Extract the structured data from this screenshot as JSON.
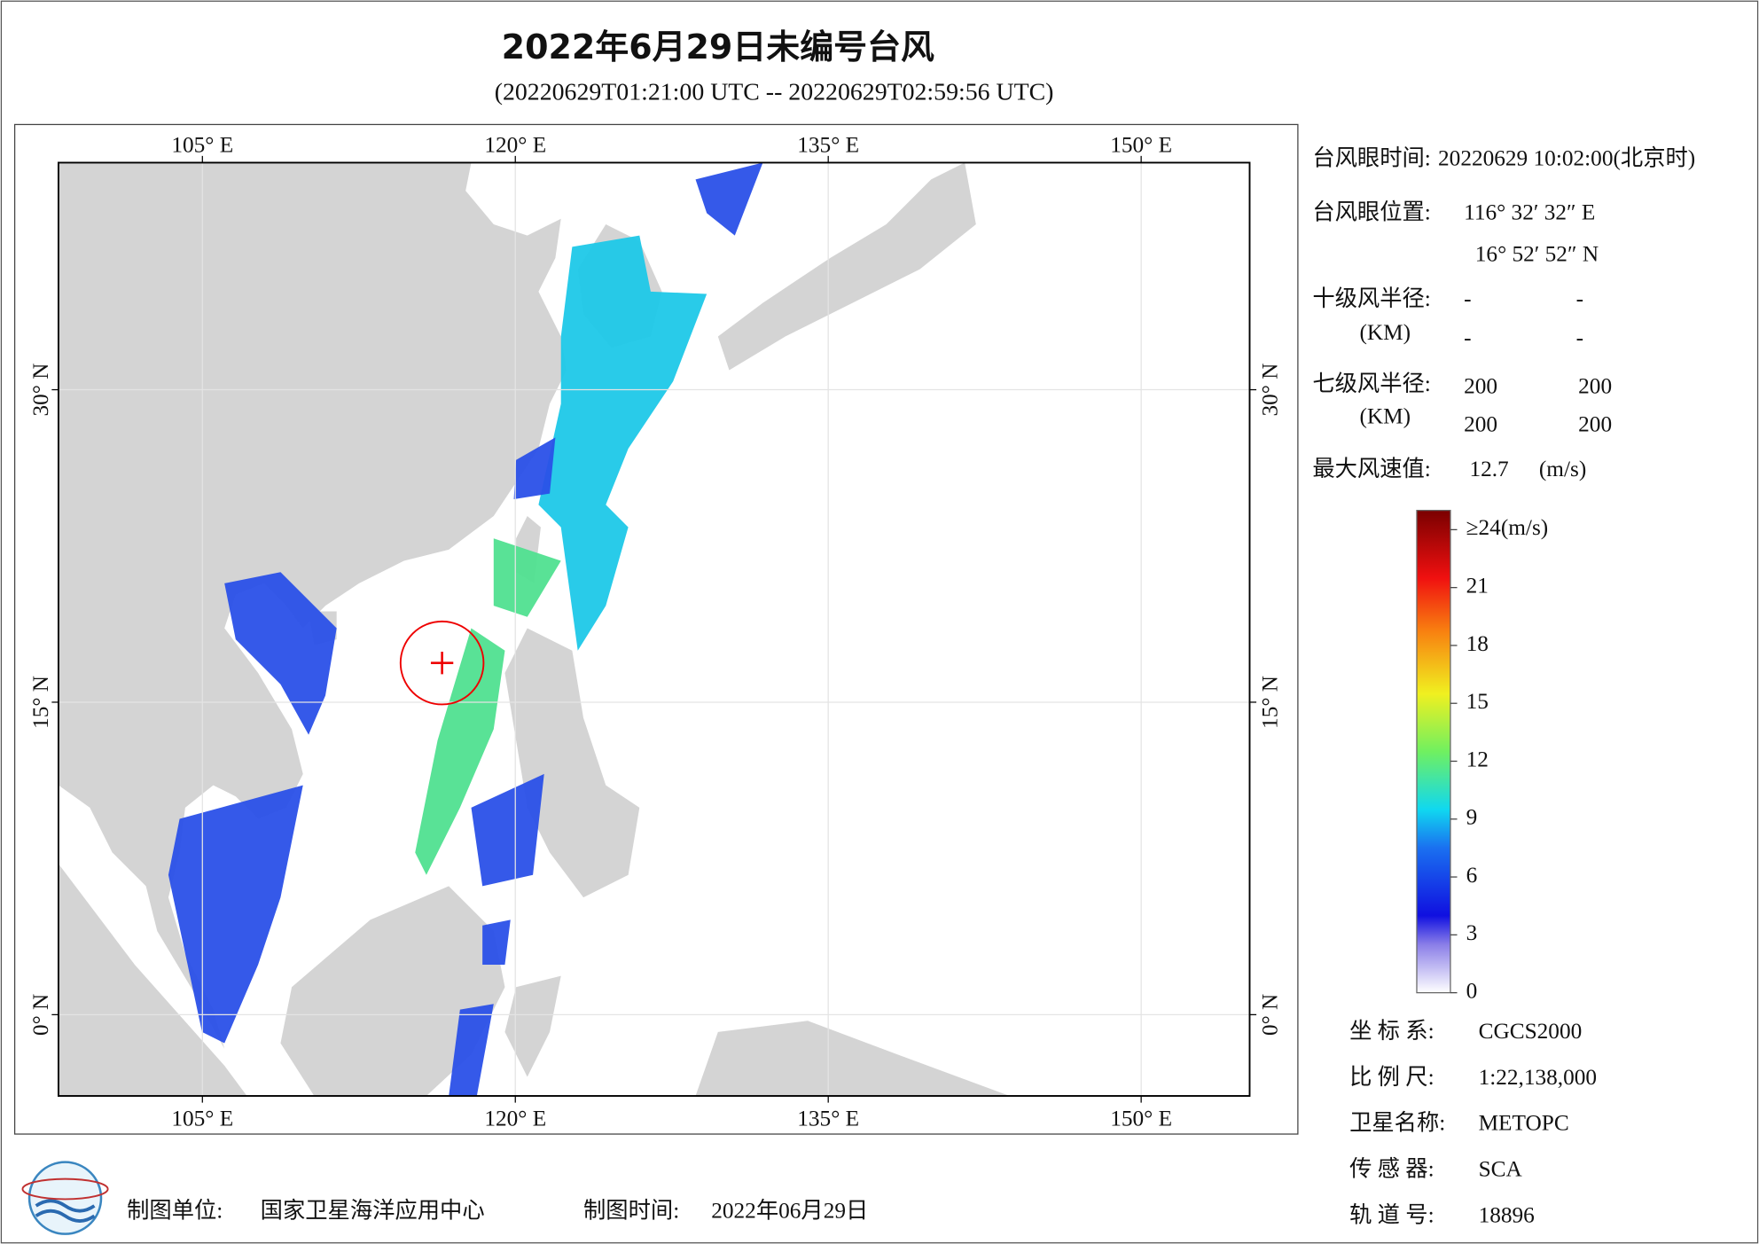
{
  "header": {
    "title": "2022年6月29日未编号台风",
    "subtitle": "(20220629T01:21:00 UTC -- 20220629T02:59:56 UTC)"
  },
  "map": {
    "xlim": [
      98.1,
      155.2
    ],
    "ylim": [
      -3.9,
      40.9
    ],
    "xticks": [
      {
        "value": 105,
        "label": "105° E"
      },
      {
        "value": 120,
        "label": "120° E"
      },
      {
        "value": 135,
        "label": "135° E"
      },
      {
        "value": 150,
        "label": "150° E"
      }
    ],
    "yticks": [
      {
        "value": 0,
        "label": "0° N"
      },
      {
        "value": 15,
        "label": "15° N"
      },
      {
        "value": 30,
        "label": "30° N"
      }
    ]
  },
  "info": {
    "eye_time_label": "台风眼时间:",
    "eye_time": "20220629 10:02:00(北京时)",
    "eye_pos_label": "台风眼位置:",
    "eye_lon": "116° 32′ 32″ E",
    "eye_lat": "16° 52′ 52″ N",
    "r10_label": "十级风半径:",
    "r7_label": "七级风半径:",
    "km": "(KM)",
    "r10": [
      "-",
      "-",
      "-",
      "-"
    ],
    "r7": [
      "200",
      "200",
      "200",
      "200"
    ],
    "max_label": "最大风速值:",
    "max_value": "12.7",
    "max_unit": "(m/s)"
  },
  "colorbar": {
    "lim": [
      0,
      25
    ],
    "ticks": [
      0,
      3,
      6,
      9,
      12,
      15,
      18,
      21,
      {
        "value": 24,
        "label": "≥24(m/s)"
      }
    ]
  },
  "meta": [
    {
      "label": "坐 标 系:",
      "value": "CGCS2000"
    },
    {
      "label": "比 例 尺:",
      "value": "1:22,138,000"
    },
    {
      "label": "卫星名称:",
      "value": "METOPC"
    },
    {
      "label": "传 感 器:",
      "value": "SCA"
    },
    {
      "label": "轨 道 号:",
      "value": "18896"
    }
  ],
  "footer": {
    "unit_label": "制图单位:",
    "unit": "国家卫星海洋应用中心",
    "time_label": "制图时间:",
    "time": "2022年06月29日"
  }
}
